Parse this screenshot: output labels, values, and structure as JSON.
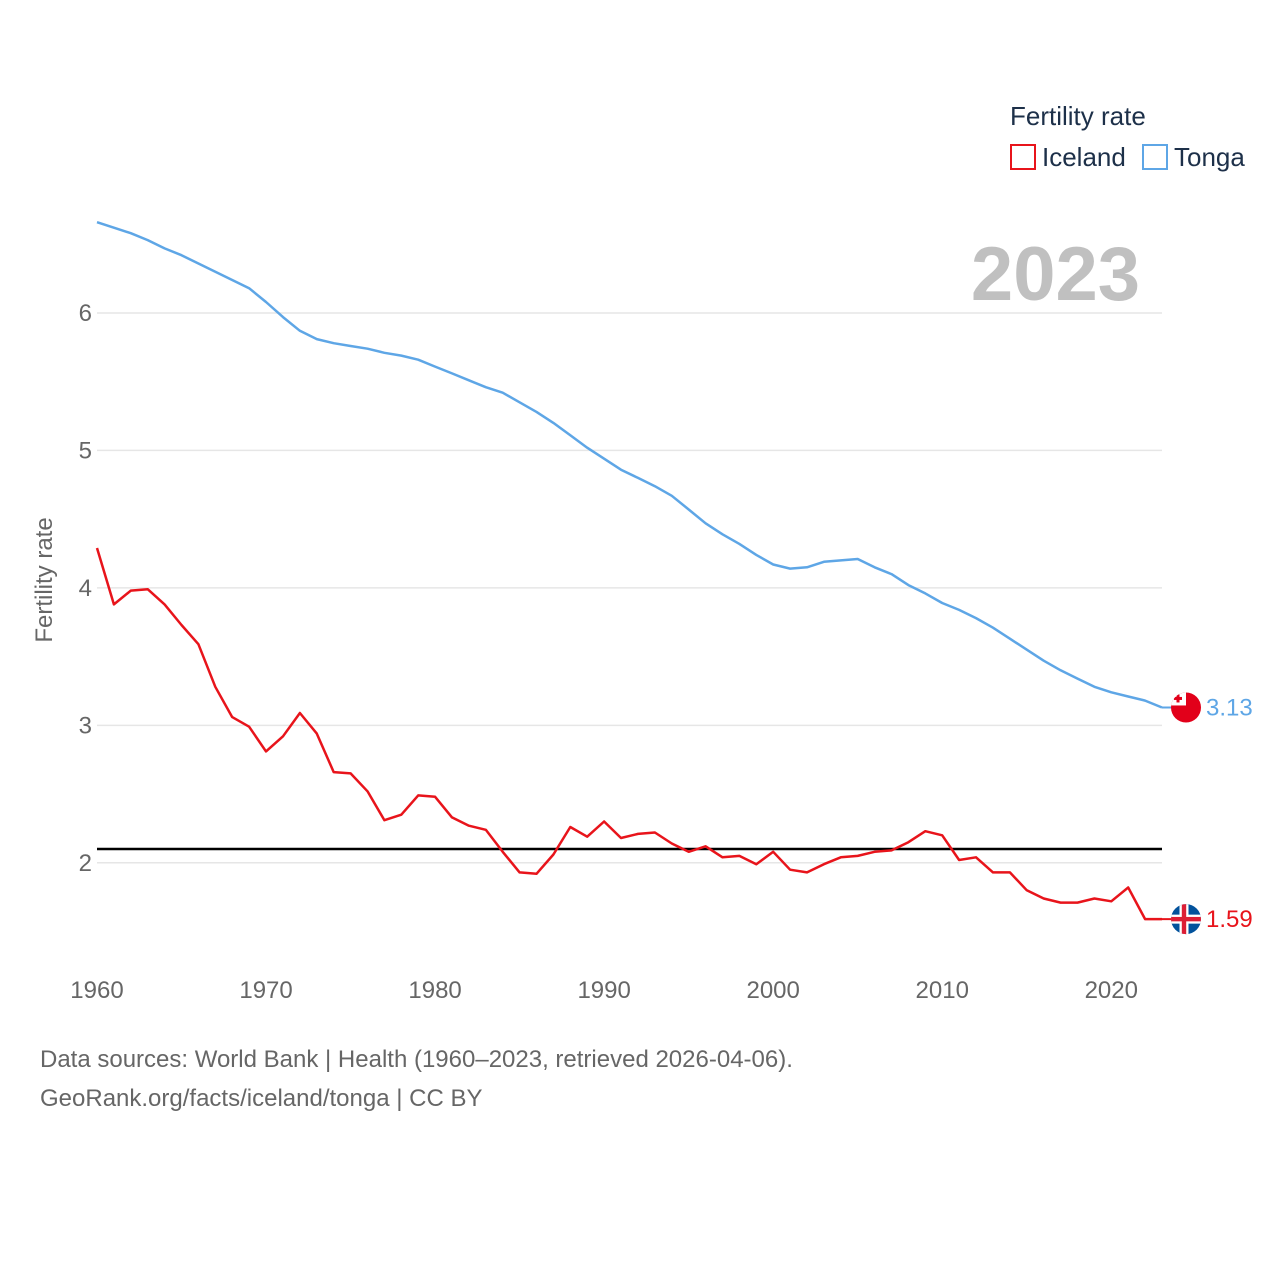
{
  "chart_data": {
    "type": "line",
    "title": "2023",
    "xlabel": "",
    "ylabel": "Fertility rate",
    "xlim": [
      1960,
      2023
    ],
    "ylim": [
      1.3,
      6.8
    ],
    "yticks": [
      2,
      3,
      4,
      5,
      6
    ],
    "xticks": [
      1960,
      1970,
      1980,
      1990,
      2000,
      2010,
      2020
    ],
    "reference_line": {
      "value": 2.1
    },
    "legend": {
      "title": "Fertility rate",
      "placement": "top-right"
    },
    "x": [
      1960,
      1961,
      1962,
      1963,
      1964,
      1965,
      1966,
      1967,
      1968,
      1969,
      1970,
      1971,
      1972,
      1973,
      1974,
      1975,
      1976,
      1977,
      1978,
      1979,
      1980,
      1981,
      1982,
      1983,
      1984,
      1985,
      1986,
      1987,
      1988,
      1989,
      1990,
      1991,
      1992,
      1993,
      1994,
      1995,
      1996,
      1997,
      1998,
      1999,
      2000,
      2001,
      2002,
      2003,
      2004,
      2005,
      2006,
      2007,
      2008,
      2009,
      2010,
      2011,
      2012,
      2013,
      2014,
      2015,
      2016,
      2017,
      2018,
      2019,
      2020,
      2021,
      2022,
      2023
    ],
    "series": [
      {
        "name": "Iceland",
        "color": "#e8141b",
        "end_label": "1.59",
        "flag": "iceland-flag",
        "values": [
          4.29,
          3.88,
          3.98,
          3.99,
          3.88,
          3.73,
          3.59,
          3.28,
          3.06,
          2.99,
          2.81,
          2.92,
          3.09,
          2.94,
          2.66,
          2.65,
          2.52,
          2.31,
          2.35,
          2.49,
          2.48,
          2.33,
          2.27,
          2.24,
          2.08,
          1.93,
          1.92,
          2.06,
          2.26,
          2.19,
          2.3,
          2.18,
          2.21,
          2.22,
          2.14,
          2.08,
          2.12,
          2.04,
          2.05,
          1.99,
          2.08,
          1.95,
          1.93,
          1.99,
          2.04,
          2.05,
          2.08,
          2.09,
          2.15,
          2.23,
          2.2,
          2.02,
          2.04,
          1.93,
          1.93,
          1.8,
          1.74,
          1.71,
          1.71,
          1.74,
          1.72,
          1.82,
          1.59,
          1.59
        ]
      },
      {
        "name": "Tonga",
        "color": "#5ea6e6",
        "end_label": "3.13",
        "flag": "tonga-flag",
        "values": [
          6.66,
          6.62,
          6.58,
          6.53,
          6.47,
          6.42,
          6.36,
          6.3,
          6.24,
          6.18,
          6.08,
          5.97,
          5.87,
          5.81,
          5.78,
          5.76,
          5.74,
          5.71,
          5.69,
          5.66,
          5.61,
          5.56,
          5.51,
          5.46,
          5.42,
          5.35,
          5.28,
          5.2,
          5.11,
          5.02,
          4.94,
          4.86,
          4.8,
          4.74,
          4.67,
          4.57,
          4.47,
          4.39,
          4.32,
          4.24,
          4.17,
          4.14,
          4.15,
          4.19,
          4.2,
          4.21,
          4.15,
          4.1,
          4.02,
          3.96,
          3.89,
          3.84,
          3.78,
          3.71,
          3.63,
          3.55,
          3.47,
          3.4,
          3.34,
          3.28,
          3.24,
          3.21,
          3.18,
          3.13
        ]
      }
    ]
  },
  "footer": {
    "source_line": "Data sources: World Bank | Health (1960–2023, retrieved 2026-04-06).",
    "credit_line": "GeoRank.org/facts/iceland/tonga | CC BY"
  }
}
